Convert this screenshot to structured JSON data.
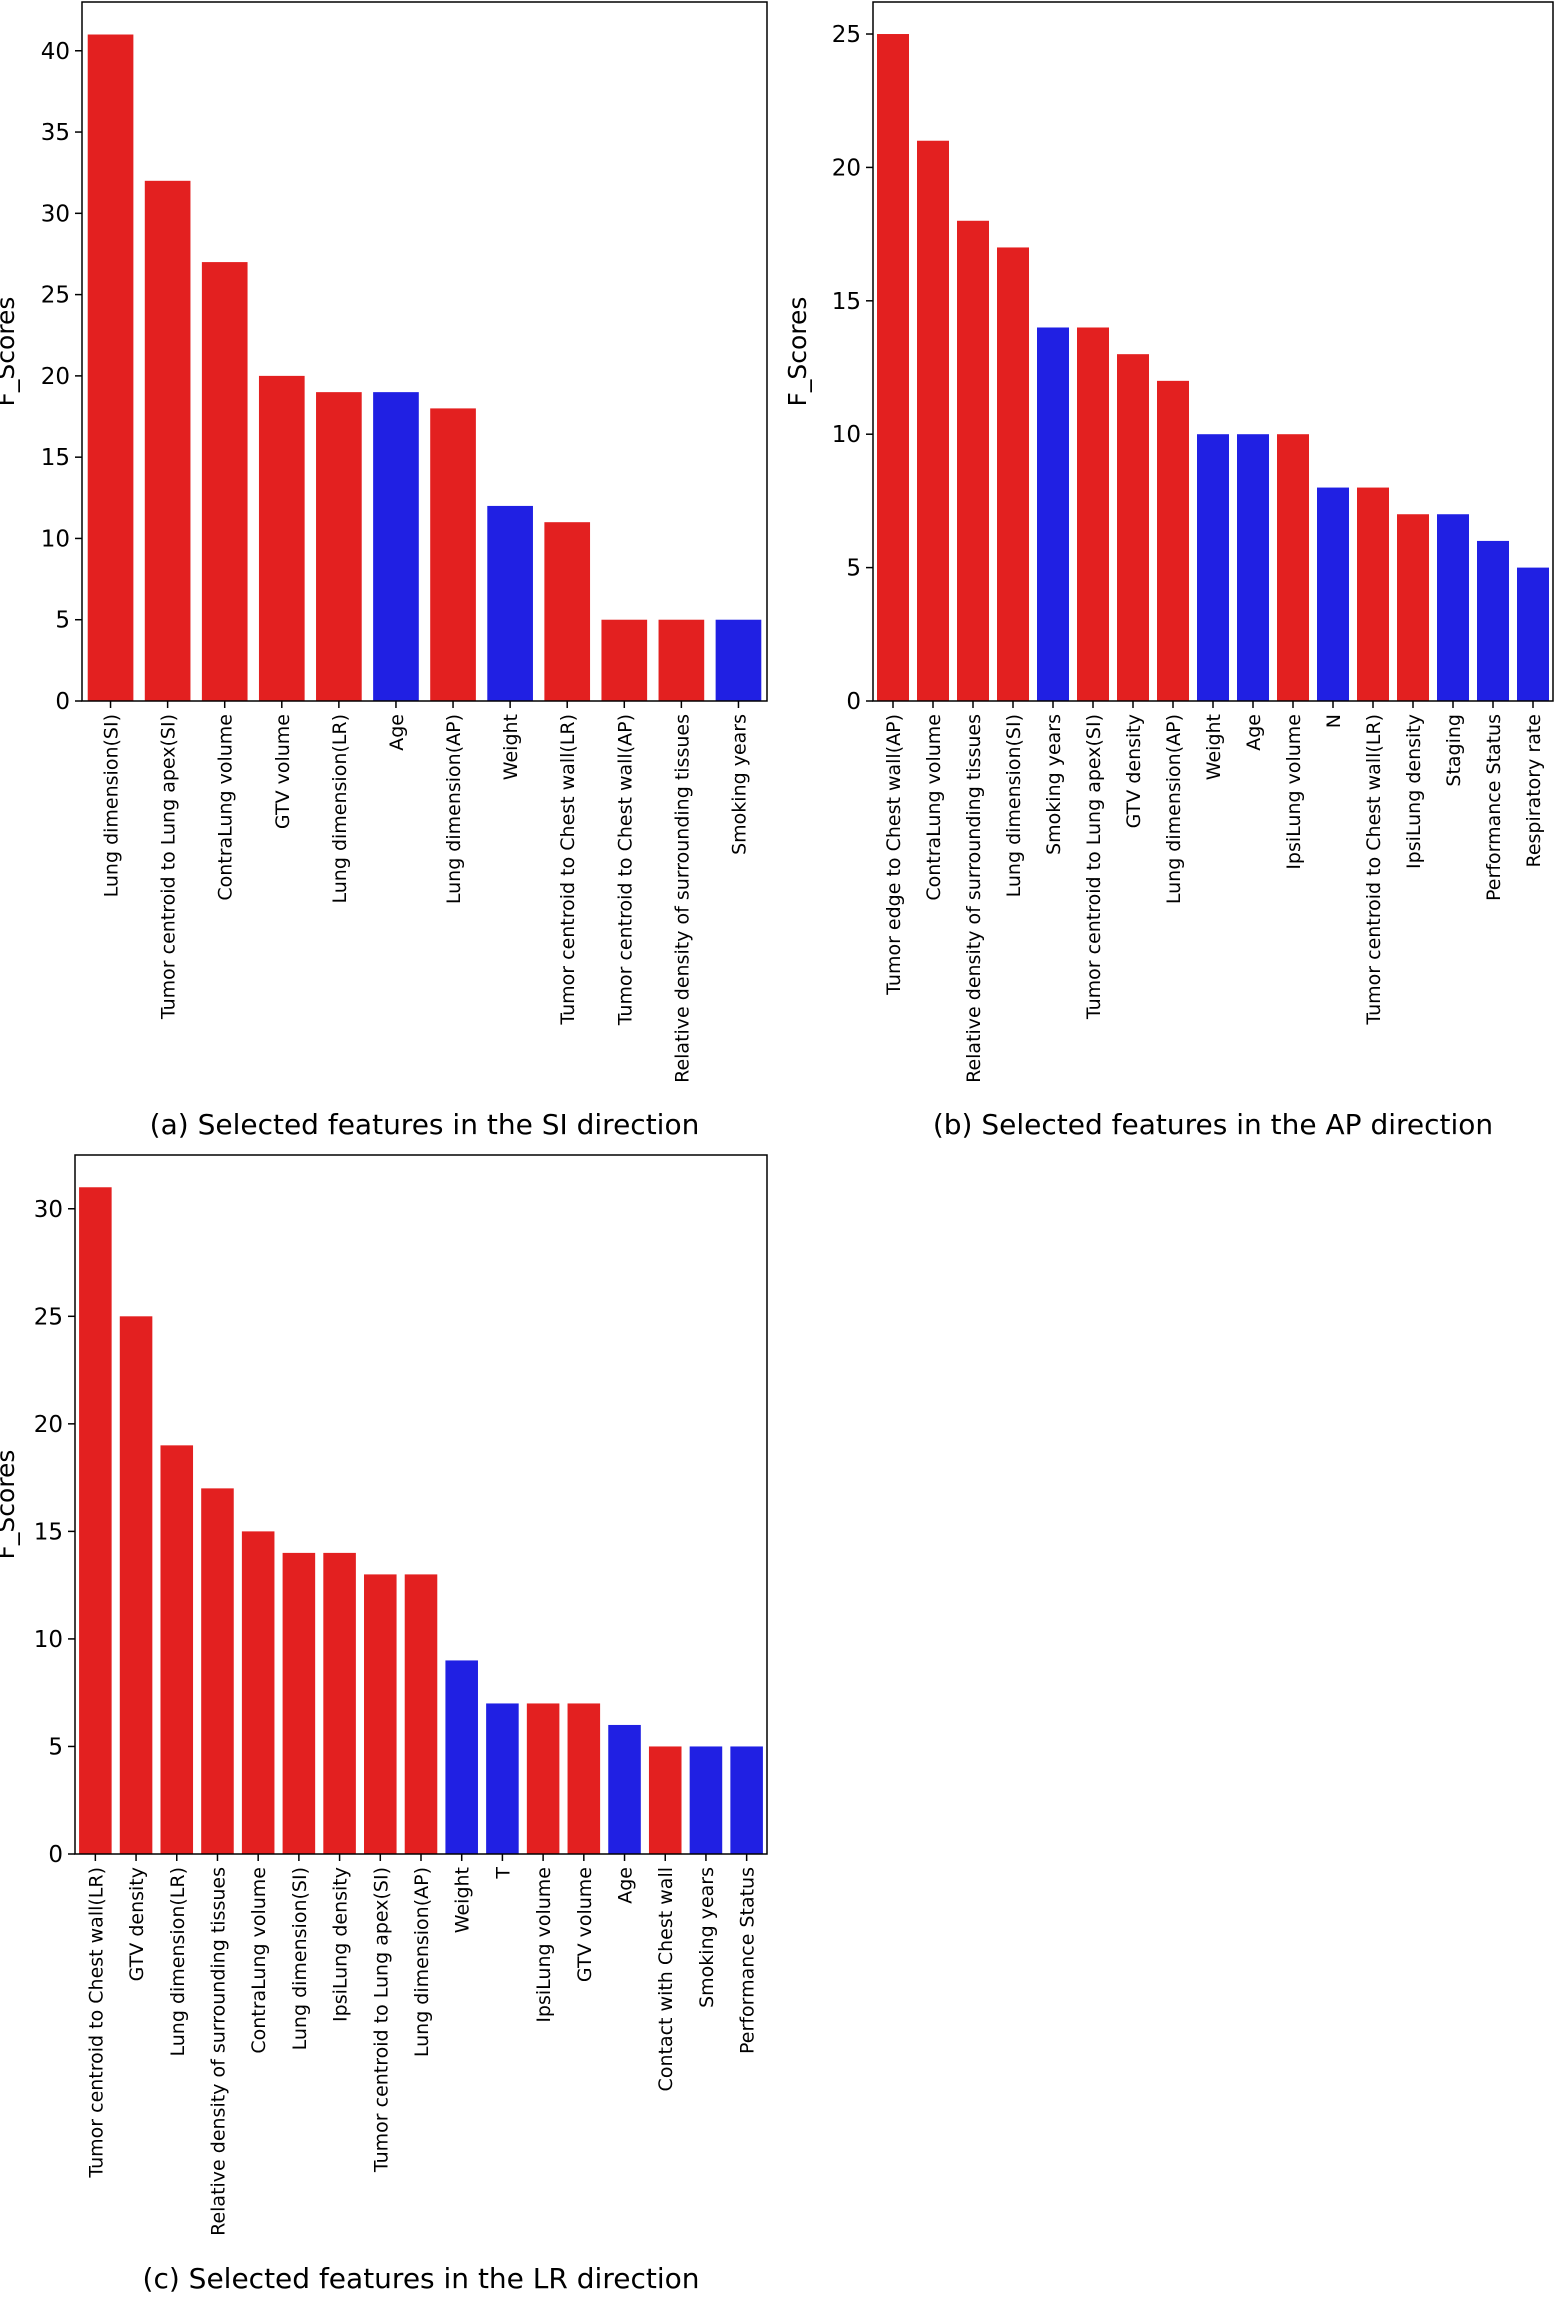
{
  "colors": {
    "red": "#e32020",
    "blue": "#2020e3",
    "axis": "#000000"
  },
  "chart_data": [
    {
      "type": "bar",
      "id": "a",
      "caption": "(a) Selected features in the SI direction",
      "ylabel": "F_Scores",
      "xlabel": "",
      "ylim": [
        0,
        43
      ],
      "yticks": [
        0,
        5,
        10,
        15,
        20,
        25,
        30,
        35,
        40
      ],
      "grid": false,
      "categories": [
        "Lung dimension(SI)",
        "Tumor centroid to Lung apex(SI)",
        "ContraLung volume",
        "GTV volume",
        "Lung dimension(LR)",
        "Age",
        "Lung dimension(AP)",
        "Weight",
        "Tumor centroid to Chest wall(LR)",
        "Tumor centroid to Chest wall(AP)",
        "Relative density of surrounding tissues",
        "Smoking years"
      ],
      "values": [
        41,
        32,
        27,
        20,
        19,
        19,
        18,
        12,
        11,
        5,
        5,
        5
      ],
      "bar_colors": [
        "red",
        "red",
        "red",
        "red",
        "red",
        "blue",
        "red",
        "blue",
        "red",
        "red",
        "red",
        "blue"
      ]
    },
    {
      "type": "bar",
      "id": "b",
      "caption": "(b) Selected features in the AP direction",
      "ylabel": "F_Scores",
      "xlabel": "",
      "ylim": [
        0,
        26.2
      ],
      "yticks": [
        0,
        5,
        10,
        15,
        20,
        25
      ],
      "grid": false,
      "categories": [
        "Tumor edge to Chest wall(AP)",
        "ContraLung volume",
        "Relative density of surrounding tissues",
        "Lung dimension(SI)",
        "Smoking years",
        "Tumor centroid to Lung apex(SI)",
        "GTV density",
        "Lung dimension(AP)",
        "Weight",
        "Age",
        "IpsiLung volume",
        "N",
        "Tumor centroid to Chest wall(LR)",
        "IpsiLung density",
        "Staging",
        "Performance Status",
        "Respiratory rate"
      ],
      "values": [
        25,
        21,
        18,
        17,
        14,
        14,
        13,
        12,
        10,
        10,
        10,
        8,
        8,
        7,
        7,
        6,
        5
      ],
      "bar_colors": [
        "red",
        "red",
        "red",
        "red",
        "blue",
        "red",
        "red",
        "red",
        "blue",
        "blue",
        "red",
        "blue",
        "red",
        "red",
        "blue",
        "blue",
        "blue"
      ]
    },
    {
      "type": "bar",
      "id": "c",
      "caption": "(c) Selected features in the LR direction",
      "ylabel": "F_Scores",
      "xlabel": "",
      "ylim": [
        0,
        32.5
      ],
      "yticks": [
        0,
        5,
        10,
        15,
        20,
        25,
        30
      ],
      "grid": false,
      "categories": [
        "Tumor centroid to Chest wall(LR)",
        "GTV density",
        "Lung dimension(LR)",
        "Relative density of surrounding tissues",
        "ContraLung volume",
        "Lung dimension(SI)",
        "IpsiLung density",
        "Tumor centroid to Lung apex(SI)",
        "Lung dimension(AP)",
        "Weight",
        "T",
        "IpsiLung volume",
        "GTV volume",
        "Age",
        "Contact with Chest wall",
        "Smoking years",
        "Performance Status"
      ],
      "values": [
        31,
        25,
        19,
        17,
        15,
        14,
        14,
        13,
        13,
        9,
        7,
        7,
        7,
        6,
        5,
        5,
        5
      ],
      "bar_colors": [
        "red",
        "red",
        "red",
        "red",
        "red",
        "red",
        "red",
        "red",
        "red",
        "blue",
        "blue",
        "red",
        "red",
        "blue",
        "red",
        "blue",
        "blue"
      ]
    }
  ]
}
